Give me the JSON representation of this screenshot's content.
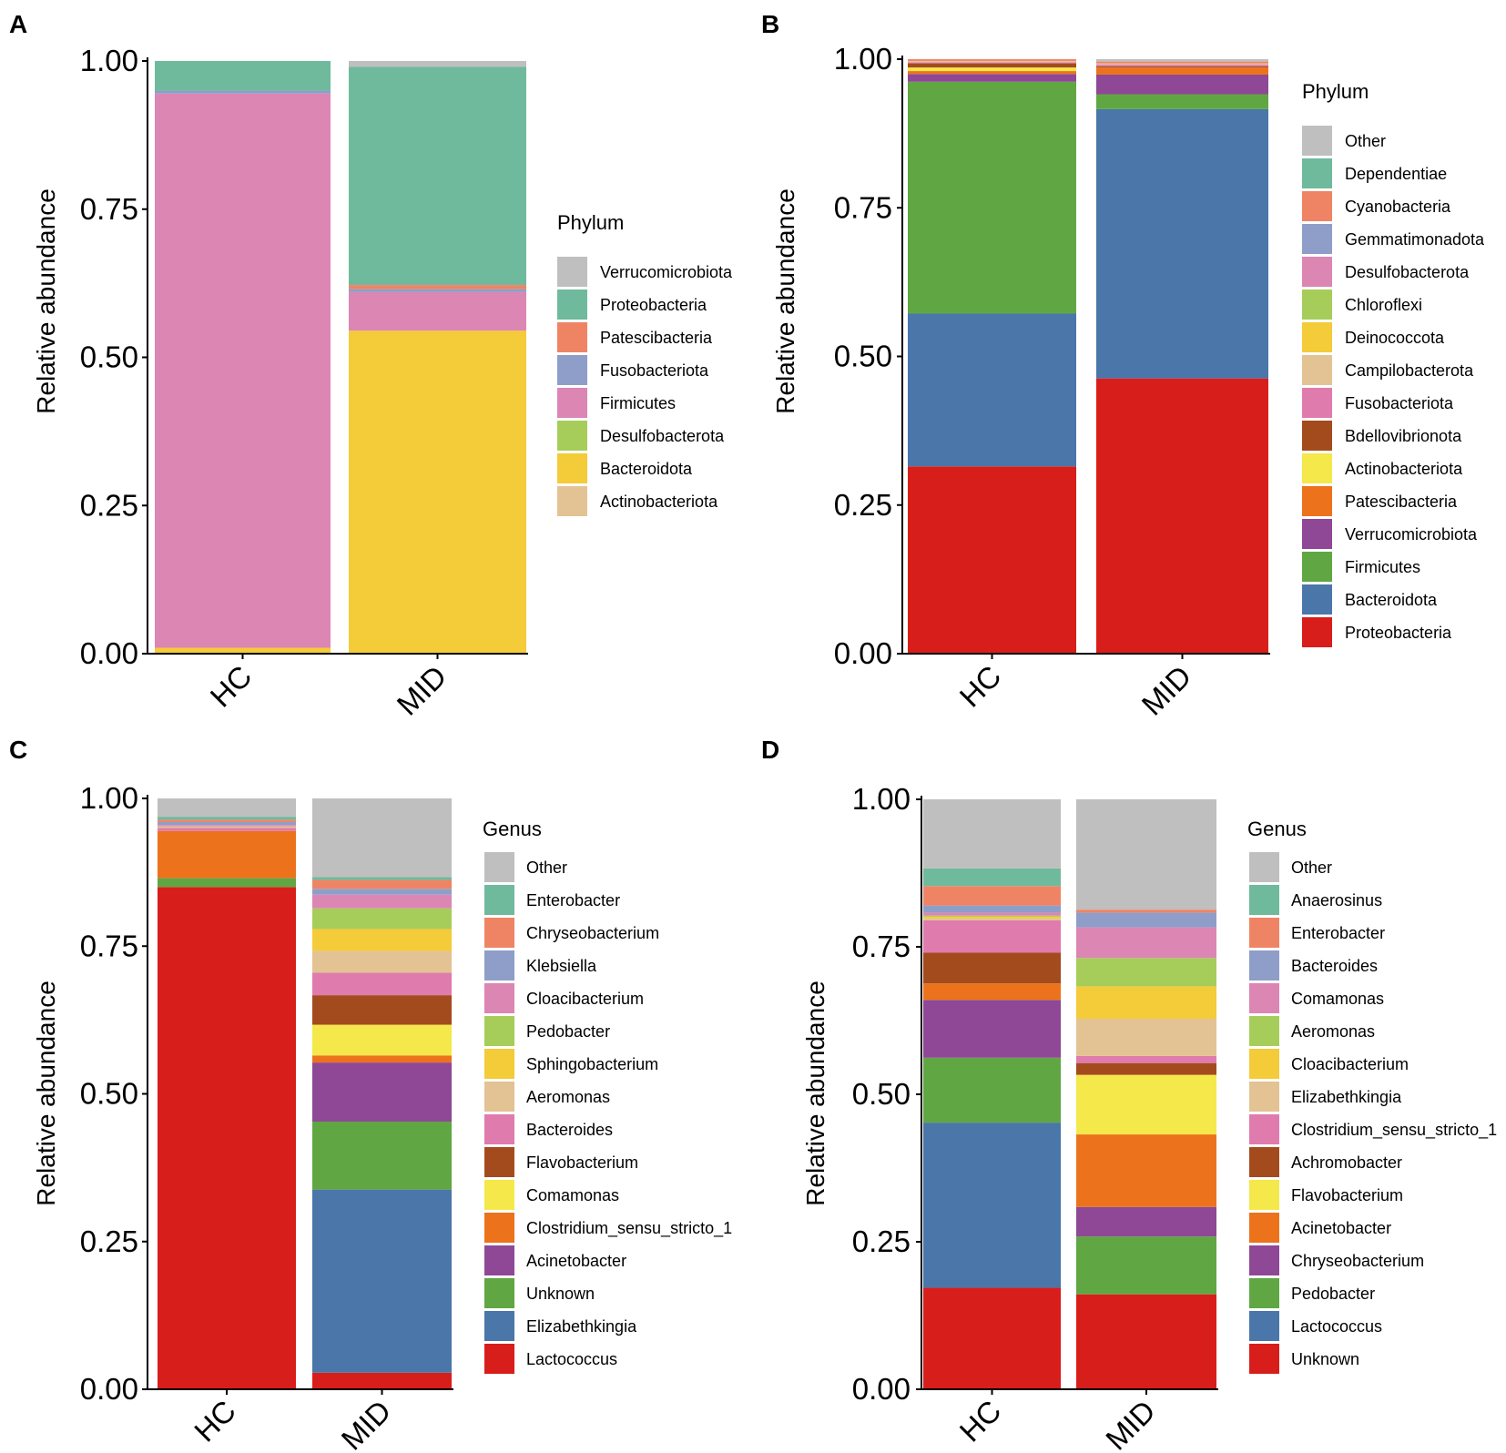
{
  "chart_data": [
    {
      "panel": "A",
      "type": "bar",
      "stacked": true,
      "ylabel": "Relative abundance",
      "ylim": [
        0,
        1
      ],
      "yticks": [
        "0.00",
        "0.25",
        "0.50",
        "0.75",
        "1.00"
      ],
      "categories": [
        "HC",
        "MID"
      ],
      "legend_title": "Phylum",
      "series": [
        {
          "name": "Actinobacteriota",
          "color": "#e3c294",
          "values": [
            0.0,
            0.0
          ]
        },
        {
          "name": "Bacteroidota",
          "color": "#f4cb38",
          "values": [
            0.01,
            0.545
          ]
        },
        {
          "name": "Desulfobacterota",
          "color": "#a6cd5a",
          "values": [
            0.0,
            0.0
          ]
        },
        {
          "name": "Firmicutes",
          "color": "#dc86b4",
          "values": [
            0.935,
            0.065
          ]
        },
        {
          "name": "Fusobacteriota",
          "color": "#8e9ec9",
          "values": [
            0.005,
            0.005
          ]
        },
        {
          "name": "Patescibacteria",
          "color": "#ef8465",
          "values": [
            0.0,
            0.007
          ]
        },
        {
          "name": "Proteobacteria",
          "color": "#6fba9d",
          "values": [
            0.05,
            0.368
          ]
        },
        {
          "name": "Verrucomicrobiota",
          "color": "#bfbfbf",
          "values": [
            0.0,
            0.01
          ]
        }
      ]
    },
    {
      "panel": "B",
      "type": "bar",
      "stacked": true,
      "ylabel": "Relative abundance",
      "ylim": [
        0,
        1
      ],
      "yticks": [
        "0.00",
        "0.25",
        "0.50",
        "0.75",
        "1.00"
      ],
      "categories": [
        "HC",
        "MID"
      ],
      "legend_title": "Phylum",
      "series": [
        {
          "name": "Proteobacteria",
          "color": "#d81e1a",
          "values": [
            0.315,
            0.463
          ]
        },
        {
          "name": "Bacteroidota",
          "color": "#4a76a9",
          "values": [
            0.257,
            0.453
          ]
        },
        {
          "name": "Firmicutes",
          "color": "#60a743",
          "values": [
            0.39,
            0.025
          ]
        },
        {
          "name": "Verrucomicrobiota",
          "color": "#8e4896",
          "values": [
            0.013,
            0.033
          ]
        },
        {
          "name": "Patescibacteria",
          "color": "#ec731c",
          "values": [
            0.005,
            0.012
          ]
        },
        {
          "name": "Actinobacteriota",
          "color": "#f4e84a",
          "values": [
            0.006,
            0.0
          ]
        },
        {
          "name": "Bdellovibrionota",
          "color": "#a44b1e",
          "values": [
            0.007,
            0.002
          ]
        },
        {
          "name": "Fusobacteriota",
          "color": "#e07bad",
          "values": [
            0.002,
            0.003
          ]
        },
        {
          "name": "Campilobacterota",
          "color": "#e3c294",
          "values": [
            0.002,
            0.002
          ]
        },
        {
          "name": "Deinococcota",
          "color": "#f4cb38",
          "values": [
            0.0,
            0.0
          ]
        },
        {
          "name": "Chloroflexi",
          "color": "#a6cd5a",
          "values": [
            0.0,
            0.0
          ]
        },
        {
          "name": "Desulfobacterota",
          "color": "#dc86b4",
          "values": [
            0.0,
            0.0
          ]
        },
        {
          "name": "Gemmatimonadota",
          "color": "#8e9ec9",
          "values": [
            0.0,
            0.0
          ]
        },
        {
          "name": "Cyanobacteria",
          "color": "#ef8465",
          "values": [
            0.003,
            0.003
          ]
        },
        {
          "name": "Dependentiae",
          "color": "#6fba9d",
          "values": [
            0.0,
            0.0
          ]
        },
        {
          "name": "Other",
          "color": "#bfbfbf",
          "values": [
            0.0,
            0.004
          ]
        }
      ]
    },
    {
      "panel": "C",
      "type": "bar",
      "stacked": true,
      "ylabel": "Relative abundance",
      "ylim": [
        0,
        1
      ],
      "yticks": [
        "0.00",
        "0.25",
        "0.50",
        "0.75",
        "1.00"
      ],
      "categories": [
        "HC",
        "MID"
      ],
      "legend_title": "Genus",
      "series": [
        {
          "name": "Lactococcus",
          "color": "#d81e1a",
          "values": [
            0.85,
            0.028
          ]
        },
        {
          "name": "Elizabethkingia",
          "color": "#4a76a9",
          "values": [
            0.0,
            0.31
          ]
        },
        {
          "name": "Unknown",
          "color": "#60a743",
          "values": [
            0.015,
            0.115
          ]
        },
        {
          "name": "Acinetobacter",
          "color": "#8e4896",
          "values": [
            0.0,
            0.1
          ]
        },
        {
          "name": "Clostridium_sensu_stricto_1",
          "color": "#ec731c",
          "values": [
            0.08,
            0.012
          ]
        },
        {
          "name": "Comamonas",
          "color": "#f4e84a",
          "values": [
            0.0,
            0.052
          ]
        },
        {
          "name": "Flavobacterium",
          "color": "#a44b1e",
          "values": [
            0.0,
            0.05
          ]
        },
        {
          "name": "Bacteroides",
          "color": "#e07bad",
          "values": [
            0.005,
            0.038
          ]
        },
        {
          "name": "Aeromonas",
          "color": "#e3c294",
          "values": [
            0.003,
            0.037
          ]
        },
        {
          "name": "Sphingobacterium",
          "color": "#f4cb38",
          "values": [
            0.0,
            0.037
          ]
        },
        {
          "name": "Pedobacter",
          "color": "#a6cd5a",
          "values": [
            0.0,
            0.035
          ]
        },
        {
          "name": "Cloacibacterium",
          "color": "#dc86b4",
          "values": [
            0.002,
            0.023
          ]
        },
        {
          "name": "Klebsiella",
          "color": "#8e9ec9",
          "values": [
            0.005,
            0.01
          ]
        },
        {
          "name": "Chryseobacterium",
          "color": "#ef8465",
          "values": [
            0.004,
            0.015
          ]
        },
        {
          "name": "Enterobacter",
          "color": "#6fba9d",
          "values": [
            0.005,
            0.005
          ]
        },
        {
          "name": "Other",
          "color": "#bfbfbf",
          "values": [
            0.031,
            0.133
          ]
        }
      ]
    },
    {
      "panel": "D",
      "type": "bar",
      "stacked": true,
      "ylabel": "Relative abundance",
      "ylim": [
        0,
        1
      ],
      "yticks": [
        "0.00",
        "0.25",
        "0.50",
        "0.75",
        "1.00"
      ],
      "categories": [
        "HC",
        "MID"
      ],
      "legend_title": "Genus",
      "series": [
        {
          "name": "Unknown",
          "color": "#d81e1a",
          "values": [
            0.172,
            0.161
          ]
        },
        {
          "name": "Lactococcus",
          "color": "#4a76a9",
          "values": [
            0.28,
            0.0
          ]
        },
        {
          "name": "Pedobacter",
          "color": "#60a743",
          "values": [
            0.11,
            0.098
          ]
        },
        {
          "name": "Chryseobacterium",
          "color": "#8e4896",
          "values": [
            0.098,
            0.05
          ]
        },
        {
          "name": "Acinetobacter",
          "color": "#ec731c",
          "values": [
            0.028,
            0.123
          ]
        },
        {
          "name": "Flavobacterium",
          "color": "#f4e84a",
          "values": [
            0.0,
            0.101
          ]
        },
        {
          "name": "Achromobacter",
          "color": "#a44b1e",
          "values": [
            0.052,
            0.02
          ]
        },
        {
          "name": "Clostridium_sensu_stricto_1",
          "color": "#e07bad",
          "values": [
            0.055,
            0.012
          ]
        },
        {
          "name": "Elizabethkingia",
          "color": "#e3c294",
          "values": [
            0.003,
            0.063
          ]
        },
        {
          "name": "Cloacibacterium",
          "color": "#f4cb38",
          "values": [
            0.003,
            0.055
          ]
        },
        {
          "name": "Aeromonas",
          "color": "#a6cd5a",
          "values": [
            0.002,
            0.048
          ]
        },
        {
          "name": "Comamonas",
          "color": "#dc86b4",
          "values": [
            0.005,
            0.052
          ]
        },
        {
          "name": "Bacteroides",
          "color": "#8e9ec9",
          "values": [
            0.012,
            0.025
          ]
        },
        {
          "name": "Enterobacter",
          "color": "#ef8465",
          "values": [
            0.033,
            0.005
          ]
        },
        {
          "name": "Anaerosinus",
          "color": "#6fba9d",
          "values": [
            0.03,
            0.0
          ]
        },
        {
          "name": "Other",
          "color": "#bfbfbf",
          "values": [
            0.117,
            0.187
          ]
        }
      ]
    }
  ]
}
